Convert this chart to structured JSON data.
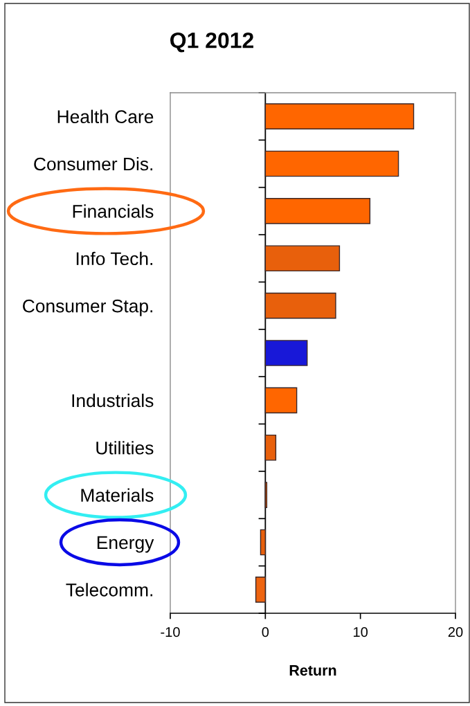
{
  "chart_data": {
    "type": "bar",
    "orientation": "horizontal",
    "title": "Q1 2012",
    "xlabel": "Return",
    "categories": [
      "Health Care",
      "Consumer Dis.",
      "Financials",
      "Info Tech.",
      "Consumer Stap.",
      null,
      "Industrials",
      "Utilities",
      "Materials",
      "Energy",
      "Telecomm."
    ],
    "values": [
      15.6,
      14.0,
      11.0,
      7.8,
      7.4,
      4.4,
      3.3,
      1.1,
      0.15,
      -0.5,
      -1.0
    ],
    "colors": [
      "#ff6600",
      "#ff6600",
      "#ff6600",
      "#e8600c",
      "#e8600c",
      "#1818d8",
      "#ff6600",
      "#e8600c",
      "#ff6600",
      "#e8600c",
      "#ee6410"
    ],
    "xlim": [
      -10,
      20
    ],
    "xticks": [
      -10,
      0,
      10,
      20
    ],
    "ref_lines": [
      {
        "axis": "x",
        "value": 0,
        "color": "#000000"
      }
    ],
    "grid": false
  }
}
